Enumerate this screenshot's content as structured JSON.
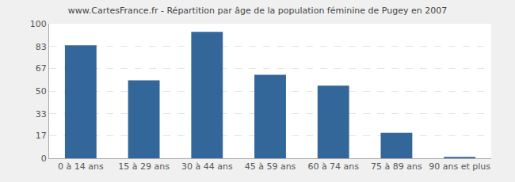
{
  "chart_data": {
    "type": "bar",
    "title": "www.CartesFrance.fr - Répartition par âge de la population féminine de Pugey en 2007",
    "categories": [
      "0 à 14 ans",
      "15 à 29 ans",
      "30 à 44 ans",
      "45 à 59 ans",
      "60 à 74 ans",
      "75 à 89 ans",
      "90 ans et plus"
    ],
    "values": [
      84,
      58,
      94,
      62,
      54,
      19,
      1
    ],
    "color": "#336699",
    "ylim": [
      0,
      100
    ],
    "yticks": [
      0,
      17,
      33,
      50,
      67,
      83,
      100
    ],
    "grid": true
  }
}
